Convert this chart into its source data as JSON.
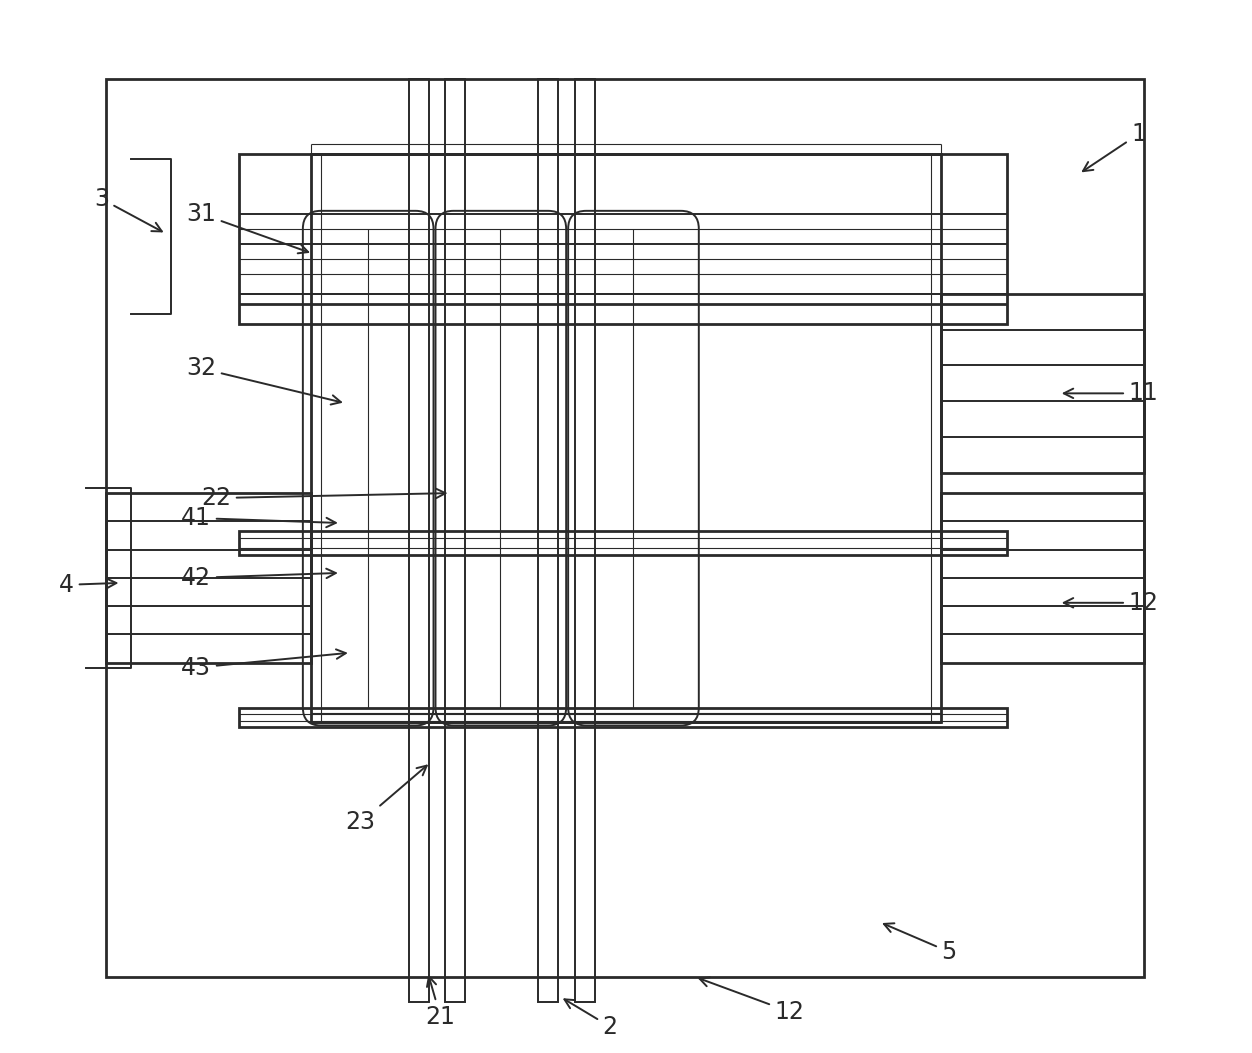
{
  "fig_width": 12.52,
  "fig_height": 10.53,
  "bg_color": "#ffffff",
  "line_color": "#2a2a2a",
  "lw_main": 2.0,
  "lw_med": 1.4,
  "lw_thin": 0.8
}
